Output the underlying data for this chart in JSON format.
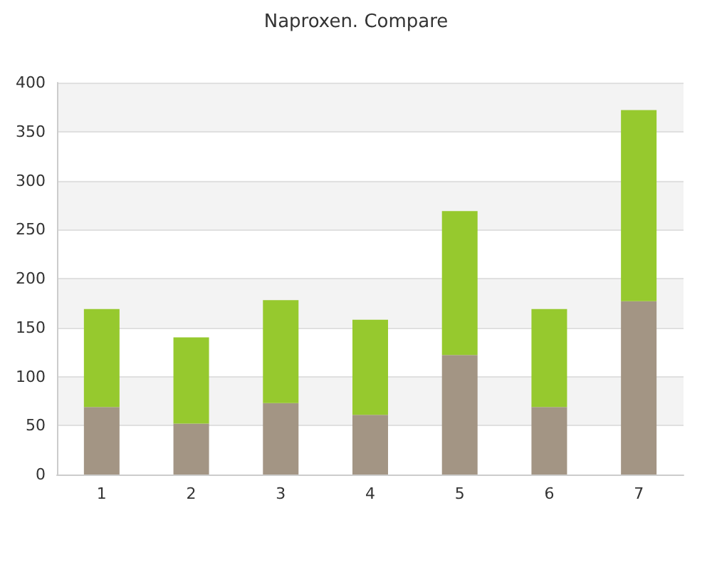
{
  "chart_data": {
    "type": "bar",
    "title": "Naproxen. Compare",
    "categories": [
      "1",
      "2",
      "3",
      "4",
      "5",
      "6",
      "7"
    ],
    "stacked": true,
    "series": [
      {
        "color": "#a39584",
        "values": [
          69,
          52,
          73,
          61,
          122,
          69,
          177
        ]
      },
      {
        "color": "#96c92e",
        "values": [
          100,
          88,
          105,
          97,
          147,
          100,
          195
        ]
      }
    ],
    "ylim": [
      0,
      400
    ],
    "yticks": [
      0,
      50,
      100,
      150,
      200,
      250,
      300,
      350,
      400
    ],
    "grid": "y"
  }
}
